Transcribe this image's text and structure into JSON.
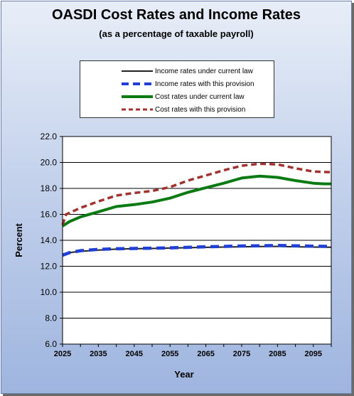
{
  "colors": {
    "income_current": "#222222",
    "income_provision": "#1f3fd6",
    "cost_current": "#0a7a12",
    "cost_provision": "#a0332f"
  },
  "chart_data": {
    "type": "line",
    "title": "OASDI Cost Rates and Income Rates",
    "subtitle": "(as a percentage of taxable payroll)",
    "xlabel": "Year",
    "ylabel": "Percent",
    "xlim": [
      2025,
      2100
    ],
    "ylim": [
      6,
      22
    ],
    "y_ticks": [
      "22.0",
      "20.0",
      "18.0",
      "16.0",
      "14.0",
      "12.0",
      "10.0",
      "8.0",
      "6.0"
    ],
    "x_ticks": [
      "2025",
      "2035",
      "2045",
      "2055",
      "2065",
      "2075",
      "2085",
      "2095"
    ],
    "grid": true,
    "legend": "top",
    "series": [
      {
        "name": "Income rates under current law",
        "x": [
          2025,
          2027,
          2030,
          2035,
          2040,
          2045,
          2050,
          2055,
          2060,
          2065,
          2070,
          2075,
          2080,
          2085,
          2090,
          2095,
          2100
        ],
        "values": [
          12.95,
          13.05,
          13.15,
          13.25,
          13.32,
          13.35,
          13.37,
          13.4,
          13.43,
          13.46,
          13.48,
          13.5,
          13.52,
          13.53,
          13.5,
          13.48,
          13.47
        ]
      },
      {
        "name": "Income rates with this provision",
        "x": [
          2025,
          2027,
          2030,
          2035,
          2040,
          2045,
          2050,
          2055,
          2060,
          2065,
          2070,
          2075,
          2080,
          2085,
          2090,
          2095,
          2100
        ],
        "values": [
          12.85,
          13.05,
          13.2,
          13.3,
          13.35,
          13.37,
          13.39,
          13.42,
          13.46,
          13.5,
          13.53,
          13.56,
          13.58,
          13.6,
          13.57,
          13.55,
          13.53
        ]
      },
      {
        "name": "Cost rates under current law",
        "x": [
          2025,
          2027,
          2030,
          2035,
          2040,
          2045,
          2050,
          2055,
          2060,
          2065,
          2070,
          2075,
          2080,
          2085,
          2090,
          2095,
          2098,
          2100
        ],
        "values": [
          15.1,
          15.45,
          15.8,
          16.2,
          16.6,
          16.75,
          16.95,
          17.25,
          17.7,
          18.05,
          18.4,
          18.8,
          18.95,
          18.85,
          18.6,
          18.4,
          18.35,
          18.35
        ]
      },
      {
        "name": "Cost rates with this provision",
        "x": [
          2025,
          2026,
          2030,
          2035,
          2040,
          2045,
          2050,
          2055,
          2060,
          2065,
          2070,
          2075,
          2080,
          2085,
          2090,
          2095,
          2100
        ],
        "values": [
          15.2,
          16.0,
          16.5,
          17.0,
          17.45,
          17.65,
          17.8,
          18.1,
          18.6,
          19.0,
          19.4,
          19.75,
          19.9,
          19.85,
          19.55,
          19.3,
          19.25
        ]
      }
    ]
  }
}
